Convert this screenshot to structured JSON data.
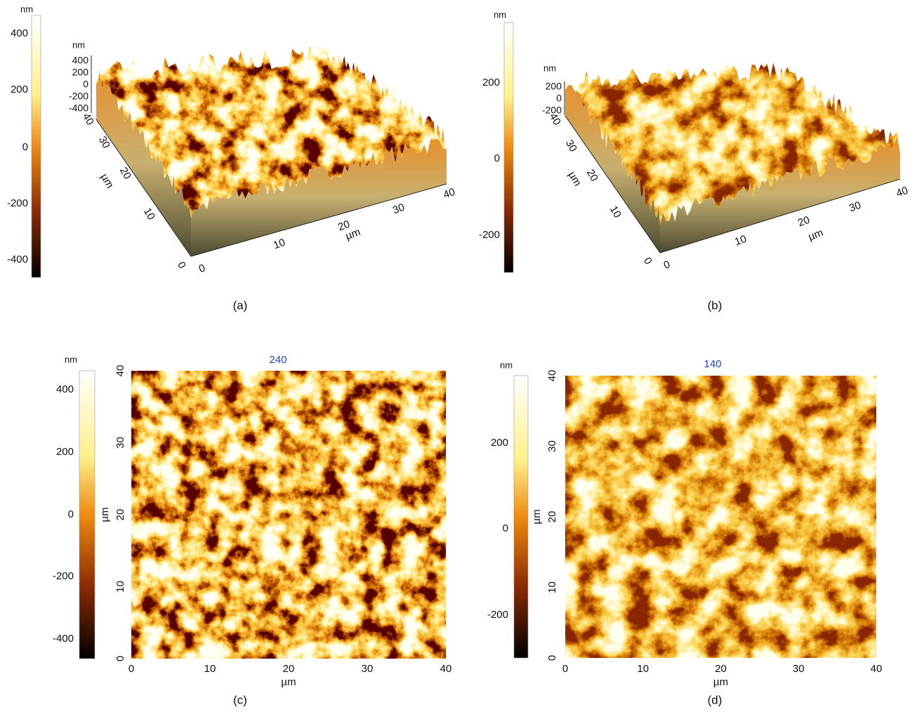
{
  "panels": [
    {
      "label": "(a)",
      "colorbar": {
        "unit": "nm",
        "ticks": [
          "400",
          "200",
          "0",
          "-200",
          "-400"
        ]
      },
      "view": {
        "z_unit": "nm",
        "z_ticks": [
          "400",
          "200",
          "0",
          "-200",
          "-400"
        ],
        "left_ticks": [
          "0",
          "10",
          "20",
          "30",
          "40"
        ],
        "left_unit": "µm",
        "bottom_ticks": [
          "0",
          "10",
          "20",
          "30",
          "40"
        ],
        "bottom_unit": "µm"
      }
    },
    {
      "label": "(b)",
      "colorbar": {
        "unit": "nm",
        "ticks": [
          "200",
          "0",
          "-200"
        ]
      },
      "view": {
        "z_unit": "nm",
        "z_ticks": [
          "200",
          "0",
          "-200"
        ],
        "left_ticks": [
          "0",
          "10",
          "20",
          "30",
          "40"
        ],
        "left_unit": "µm",
        "bottom_ticks": [
          "0",
          "10",
          "20",
          "30",
          "40"
        ],
        "bottom_unit": "µm"
      }
    },
    {
      "label": "(c)",
      "colorbar": {
        "unit": "nm",
        "ticks": [
          "400",
          "200",
          "0",
          "-200",
          "-400"
        ]
      },
      "map": {
        "title": "240",
        "y_ticks": [
          "0",
          "10",
          "20",
          "30",
          "40"
        ],
        "y_unit": "µm",
        "x_ticks": [
          "0",
          "10",
          "20",
          "30",
          "40"
        ],
        "x_unit": "µm"
      }
    },
    {
      "label": "(d)",
      "colorbar": {
        "unit": "nm",
        "ticks": [
          "200",
          "0",
          "-200"
        ]
      },
      "map": {
        "title": "140",
        "y_ticks": [
          "0",
          "10",
          "20",
          "30",
          "40"
        ],
        "y_unit": "µm",
        "x_ticks": [
          "0",
          "10",
          "20",
          "30",
          "40"
        ],
        "x_unit": "µm"
      }
    }
  ]
}
